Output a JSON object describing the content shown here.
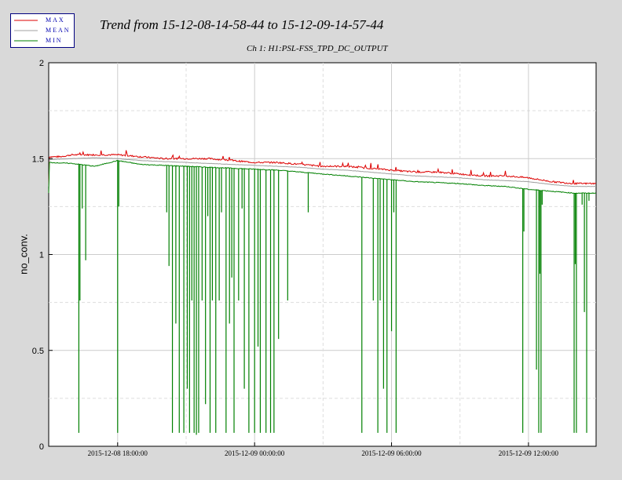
{
  "title": "Trend from 15-12-08-14-58-44 to 15-12-09-14-57-44",
  "subtitle": "Ch 1: H1:PSL-FSS_TPD_DC_OUTPUT",
  "colors": {
    "max": "#dd0000",
    "mean": "#a0a0a0",
    "min": "#008000",
    "legend_text": "#0000b0"
  },
  "chart_data": {
    "type": "line",
    "ylabel": "no_conv.",
    "ylim": [
      0,
      2
    ],
    "yticks": [
      0,
      0.5,
      1,
      1.5,
      2
    ],
    "ytick_labels": [
      "0",
      "0.5",
      "1",
      "1.5",
      "2"
    ],
    "xrange_hours": [
      14.979,
      38.962
    ],
    "xticks": [
      {
        "hour": 18,
        "label": "2015-12-08 18:00:00"
      },
      {
        "hour": 24,
        "label": "2015-12-09 00:00:00"
      },
      {
        "hour": 30,
        "label": "2015-12-09 06:00:00"
      },
      {
        "hour": 36,
        "label": "2015-12-09 12:00:00"
      }
    ],
    "grid": true,
    "legend": "top-left",
    "series": [
      {
        "name": "MAX",
        "values_note": "follows mean + ~0.02 with spikes",
        "points": [
          [
            14.98,
            1.51
          ],
          [
            15.5,
            1.51
          ],
          [
            16.0,
            1.52
          ],
          [
            16.5,
            1.52
          ],
          [
            17.0,
            1.52
          ],
          [
            17.5,
            1.52
          ],
          [
            18.0,
            1.52
          ],
          [
            19.0,
            1.51
          ],
          [
            20.0,
            1.5
          ],
          [
            21.0,
            1.5
          ],
          [
            22.0,
            1.5
          ],
          [
            23.0,
            1.49
          ],
          [
            24.0,
            1.48
          ],
          [
            25.0,
            1.48
          ],
          [
            26.0,
            1.47
          ],
          [
            27.0,
            1.46
          ],
          [
            28.0,
            1.46
          ],
          [
            29.0,
            1.45
          ],
          [
            30.0,
            1.44
          ],
          [
            31.0,
            1.43
          ],
          [
            32.0,
            1.43
          ],
          [
            33.0,
            1.42
          ],
          [
            34.0,
            1.41
          ],
          [
            35.0,
            1.41
          ],
          [
            36.0,
            1.4
          ],
          [
            37.0,
            1.38
          ],
          [
            38.0,
            1.37
          ],
          [
            38.96,
            1.37
          ]
        ]
      },
      {
        "name": "MEAN",
        "points": [
          [
            14.98,
            1.495
          ],
          [
            16.0,
            1.5
          ],
          [
            17.0,
            1.505
          ],
          [
            18.0,
            1.5
          ],
          [
            19.0,
            1.49
          ],
          [
            20.0,
            1.485
          ],
          [
            21.0,
            1.48
          ],
          [
            22.0,
            1.475
          ],
          [
            23.0,
            1.47
          ],
          [
            24.0,
            1.465
          ],
          [
            25.0,
            1.46
          ],
          [
            26.0,
            1.455
          ],
          [
            27.0,
            1.445
          ],
          [
            28.0,
            1.44
          ],
          [
            29.0,
            1.43
          ],
          [
            30.0,
            1.42
          ],
          [
            31.0,
            1.41
          ],
          [
            32.0,
            1.405
          ],
          [
            33.0,
            1.4
          ],
          [
            34.0,
            1.39
          ],
          [
            35.0,
            1.385
          ],
          [
            36.0,
            1.38
          ],
          [
            37.0,
            1.365
          ],
          [
            38.0,
            1.355
          ],
          [
            38.96,
            1.355
          ]
        ]
      },
      {
        "name": "MIN",
        "points": [
          [
            14.98,
            1.48
          ],
          [
            16.0,
            1.475
          ],
          [
            17.0,
            1.46
          ],
          [
            18.0,
            1.49
          ],
          [
            19.0,
            1.47
          ],
          [
            20.0,
            1.465
          ],
          [
            21.0,
            1.46
          ],
          [
            22.0,
            1.455
          ],
          [
            23.0,
            1.45
          ],
          [
            24.0,
            1.445
          ],
          [
            25.0,
            1.44
          ],
          [
            26.0,
            1.43
          ],
          [
            27.0,
            1.42
          ],
          [
            28.0,
            1.41
          ],
          [
            29.0,
            1.4
          ],
          [
            30.0,
            1.39
          ],
          [
            31.0,
            1.38
          ],
          [
            32.0,
            1.375
          ],
          [
            33.0,
            1.37
          ],
          [
            34.0,
            1.36
          ],
          [
            35.0,
            1.355
          ],
          [
            36.0,
            1.34
          ],
          [
            37.0,
            1.33
          ],
          [
            38.0,
            1.32
          ],
          [
            38.96,
            1.32
          ]
        ],
        "dropouts": [
          [
            16.3,
            0.07
          ],
          [
            16.35,
            0.76
          ],
          [
            16.45,
            1.24
          ],
          [
            16.6,
            0.97
          ],
          [
            18.0,
            0.07
          ],
          [
            18.05,
            1.25
          ],
          [
            20.15,
            1.22
          ],
          [
            20.25,
            0.94
          ],
          [
            20.4,
            0.07
          ],
          [
            20.55,
            0.64
          ],
          [
            20.7,
            0.07
          ],
          [
            20.9,
            0.07
          ],
          [
            21.05,
            0.3
          ],
          [
            21.15,
            0.07
          ],
          [
            21.25,
            0.76
          ],
          [
            21.35,
            0.07
          ],
          [
            21.45,
            0.06
          ],
          [
            21.55,
            0.07
          ],
          [
            21.7,
            0.76
          ],
          [
            21.85,
            0.22
          ],
          [
            21.95,
            1.2
          ],
          [
            22.05,
            0.07
          ],
          [
            22.15,
            0.76
          ],
          [
            22.3,
            0.07
          ],
          [
            22.45,
            0.76
          ],
          [
            22.55,
            1.22
          ],
          [
            22.75,
            0.07
          ],
          [
            22.9,
            0.64
          ],
          [
            23.0,
            0.88
          ],
          [
            23.1,
            0.07
          ],
          [
            23.3,
            0.76
          ],
          [
            23.45,
            1.24
          ],
          [
            23.55,
            0.3
          ],
          [
            23.75,
            0.07
          ],
          [
            24.0,
            0.07
          ],
          [
            24.15,
            0.52
          ],
          [
            24.25,
            0.07
          ],
          [
            24.5,
            0.07
          ],
          [
            24.7,
            0.07
          ],
          [
            24.85,
            0.07
          ],
          [
            25.05,
            0.56
          ],
          [
            25.45,
            0.76
          ],
          [
            26.35,
            1.22
          ],
          [
            28.7,
            0.07
          ],
          [
            29.2,
            0.76
          ],
          [
            29.4,
            0.07
          ],
          [
            29.5,
            0.76
          ],
          [
            29.65,
            0.3
          ],
          [
            29.8,
            0.07
          ],
          [
            30.0,
            0.6
          ],
          [
            30.1,
            1.22
          ],
          [
            30.2,
            0.07
          ],
          [
            35.75,
            0.07
          ],
          [
            35.8,
            1.12
          ],
          [
            36.35,
            0.4
          ],
          [
            36.45,
            0.07
          ],
          [
            36.5,
            0.9
          ],
          [
            36.55,
            0.07
          ],
          [
            36.6,
            1.26
          ],
          [
            38.0,
            0.07
          ],
          [
            38.05,
            0.95
          ],
          [
            38.1,
            0.07
          ],
          [
            38.35,
            1.26
          ],
          [
            38.45,
            0.7
          ],
          [
            38.55,
            0.07
          ],
          [
            38.65,
            1.28
          ]
        ]
      }
    ]
  },
  "legend": {
    "items": [
      "MAX",
      "MEAN",
      "MIN"
    ]
  }
}
